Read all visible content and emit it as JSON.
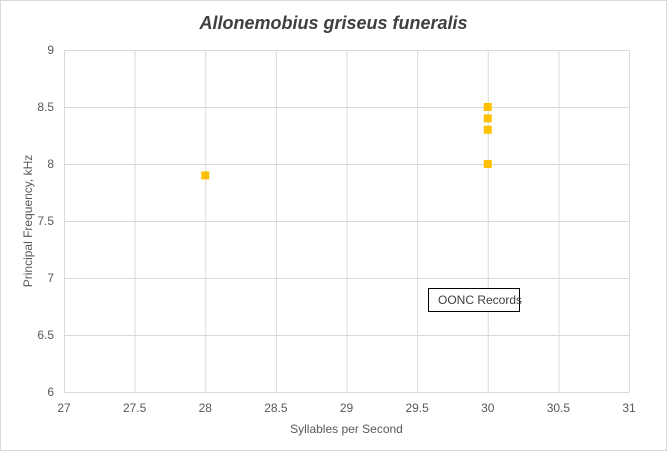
{
  "chart_data": {
    "type": "scatter",
    "title": "Allonemobius griseus funeralis",
    "xlabel": "Syllables per Second",
    "ylabel": "Principal Frequency, kHz",
    "xlim": [
      27,
      31
    ],
    "ylim": [
      6,
      9
    ],
    "x_ticks": [
      "27",
      "27.5",
      "28",
      "28.5",
      "29",
      "29.5",
      "30",
      "30.5",
      "31"
    ],
    "y_ticks": [
      "6",
      "6.5",
      "7",
      "7.5",
      "8",
      "8.5",
      "9"
    ],
    "grid": true,
    "legend_position": "inside-lower-right",
    "series": [
      {
        "name": "OONC Records",
        "color": "#ffc000",
        "marker": "square",
        "points": [
          {
            "x": 28,
            "y": 7.9
          },
          {
            "x": 30,
            "y": 8.5
          },
          {
            "x": 30,
            "y": 8.4
          },
          {
            "x": 30,
            "y": 8.3
          },
          {
            "x": 30,
            "y": 8.0
          }
        ]
      }
    ]
  }
}
